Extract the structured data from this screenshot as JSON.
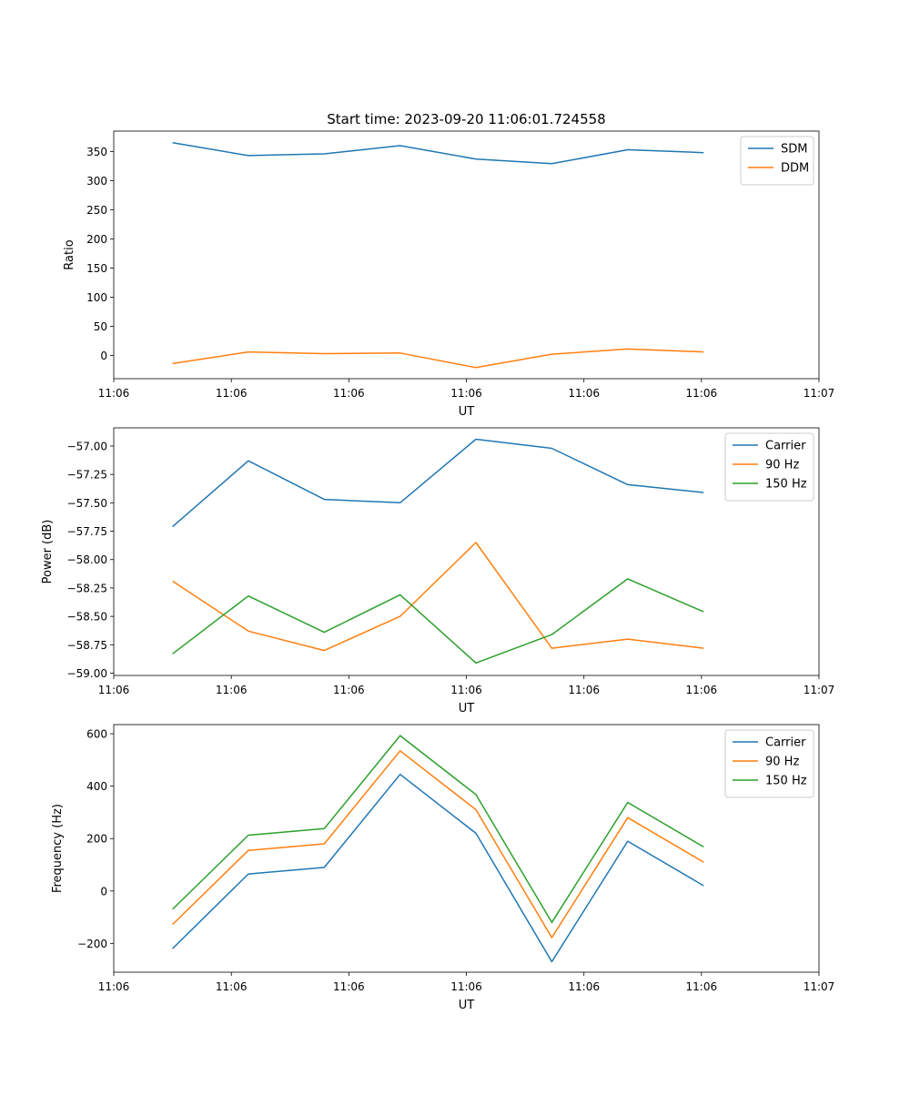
{
  "figure_title": "Start time: 2023-09-20 11:06:01.724558",
  "colors": {
    "blue": "#1f77b4",
    "orange": "#ff7f0e",
    "green": "#2ca02c"
  },
  "chart_data": [
    {
      "type": "line",
      "title": "Start time: 2023-09-20 11:06:01.724558",
      "xlabel": "UT",
      "ylabel": "Ratio",
      "xlim": [
        0,
        1
      ],
      "ylim": [
        -40,
        385
      ],
      "x": [
        0.0833,
        0.1909,
        0.2984,
        0.406,
        0.5136,
        0.6212,
        0.7288,
        0.8364
      ],
      "xticks": [
        0,
        0.1667,
        0.3333,
        0.5,
        0.6667,
        0.8333,
        1.0
      ],
      "xtick_labels": [
        "11:06",
        "11:06",
        "11:06",
        "11:06",
        "11:06",
        "11:06",
        "11:07"
      ],
      "yticks": [
        0,
        50,
        100,
        150,
        200,
        250,
        300,
        350
      ],
      "ytick_labels": [
        "0",
        "50",
        "100",
        "150",
        "200",
        "250",
        "300",
        "350"
      ],
      "legend_position": "top-right",
      "series": [
        {
          "name": "SDM",
          "color": "#1f77b4",
          "values": [
            365,
            343,
            346,
            360,
            337,
            329,
            353,
            348
          ]
        },
        {
          "name": "DDM",
          "color": "#ff7f0e",
          "values": [
            -14,
            6,
            3,
            4,
            -21,
            2,
            11,
            6
          ]
        }
      ]
    },
    {
      "type": "line",
      "title": "",
      "xlabel": "UT",
      "ylabel": "Power (dB)",
      "xlim": [
        0,
        1
      ],
      "ylim": [
        -59.02,
        -56.84
      ],
      "x": [
        0.0833,
        0.1909,
        0.2984,
        0.406,
        0.5136,
        0.6212,
        0.7288,
        0.8364
      ],
      "xticks": [
        0,
        0.1667,
        0.3333,
        0.5,
        0.6667,
        0.8333,
        1.0
      ],
      "xtick_labels": [
        "11:06",
        "11:06",
        "11:06",
        "11:06",
        "11:06",
        "11:06",
        "11:07"
      ],
      "yticks": [
        -59.0,
        -58.75,
        -58.5,
        -58.25,
        -58.0,
        -57.75,
        -57.5,
        -57.25,
        -57.0
      ],
      "ytick_labels": [
        "−59.00",
        "−58.75",
        "−58.50",
        "−58.25",
        "−58.00",
        "−57.75",
        "−57.50",
        "−57.25",
        "−57.00"
      ],
      "legend_position": "top-right",
      "series": [
        {
          "name": "Carrier",
          "color": "#1f77b4",
          "values": [
            -57.71,
            -57.13,
            -57.47,
            -57.5,
            -56.94,
            -57.02,
            -57.34,
            -57.41
          ]
        },
        {
          "name": "90 Hz",
          "color": "#ff7f0e",
          "values": [
            -58.19,
            -58.63,
            -58.8,
            -58.5,
            -57.85,
            -58.78,
            -58.7,
            -58.78
          ]
        },
        {
          "name": "150 Hz",
          "color": "#2ca02c",
          "values": [
            -58.83,
            -58.32,
            -58.64,
            -58.31,
            -58.91,
            -58.66,
            -58.17,
            -58.46
          ]
        }
      ]
    },
    {
      "type": "line",
      "title": "",
      "xlabel": "UT",
      "ylabel": "Frequency (Hz)",
      "xlim": [
        0,
        1
      ],
      "ylim": [
        -310,
        635
      ],
      "x": [
        0.0833,
        0.1909,
        0.2984,
        0.406,
        0.5136,
        0.6212,
        0.7288,
        0.8364
      ],
      "xticks": [
        0,
        0.1667,
        0.3333,
        0.5,
        0.6667,
        0.8333,
        1.0
      ],
      "xtick_labels": [
        "11:06",
        "11:06",
        "11:06",
        "11:06",
        "11:06",
        "11:06",
        "11:07"
      ],
      "yticks": [
        -200,
        0,
        200,
        400,
        600
      ],
      "ytick_labels": [
        "−200",
        "0",
        "200",
        "400",
        "600"
      ],
      "legend_position": "top-right",
      "series": [
        {
          "name": "Carrier",
          "color": "#1f77b4",
          "values": [
            -220,
            65,
            90,
            445,
            220,
            -270,
            190,
            20
          ]
        },
        {
          "name": "90 Hz",
          "color": "#ff7f0e",
          "values": [
            -128,
            155,
            180,
            535,
            310,
            -178,
            280,
            110
          ]
        },
        {
          "name": "150 Hz",
          "color": "#2ca02c",
          "values": [
            -70,
            213,
            238,
            593,
            368,
            -120,
            338,
            168
          ]
        }
      ]
    }
  ]
}
